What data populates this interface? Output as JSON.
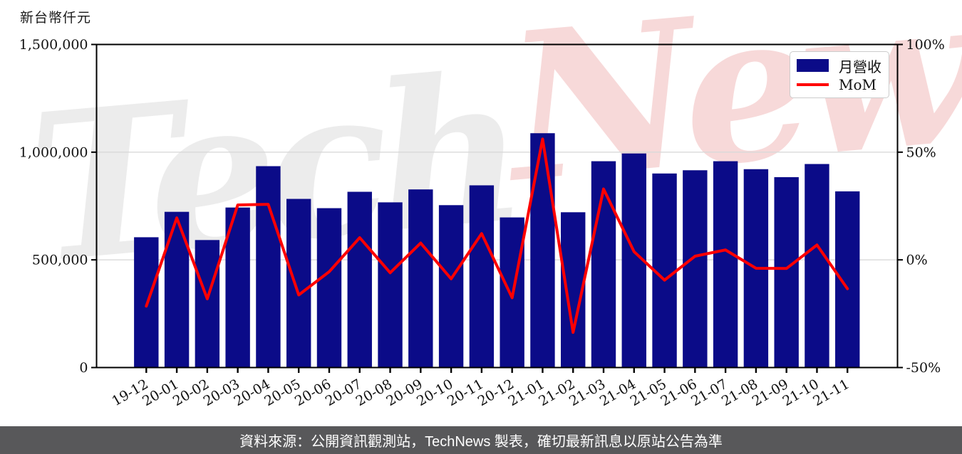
{
  "page": {
    "axis_unit_title": "新台幣仟元",
    "footer_text": "資料來源：公開資訊觀測站，TechNews 製表，確切最新訊息以原站公告為準"
  },
  "colors": {
    "bar": "#0b0b88",
    "line": "#ff0000",
    "grid": "#d9d9d9",
    "axis": "#000000",
    "tick_label": "#111111",
    "footer_bg": "#58585a",
    "footer_text": "#ffffff",
    "legend_border": "#cccccc",
    "watermark_gray": "#ececec",
    "watermark_pink": "#f7d9d9"
  },
  "watermark": {
    "part1": "Tech",
    "part2": "News"
  },
  "legend": {
    "position": "upper-right",
    "items": [
      {
        "label": "月營收",
        "type": "bar"
      },
      {
        "label": "MoM",
        "type": "line"
      }
    ]
  },
  "chart_data": {
    "type": "bar",
    "subtype": "bar+line dual axis",
    "categories": [
      "19-12",
      "20-01",
      "20-02",
      "20-03",
      "20-04",
      "20-05",
      "20-06",
      "20-07",
      "20-08",
      "20-09",
      "20-10",
      "20-11",
      "20-12",
      "21-01",
      "21-02",
      "21-03",
      "21-04",
      "21-05",
      "21-06",
      "21-07",
      "21-08",
      "21-09",
      "21-10",
      "21-11"
    ],
    "series": [
      {
        "name": "月營收",
        "type": "bar",
        "axis": "left",
        "unit": "新台幣仟元",
        "values": [
          605000,
          723000,
          592000,
          743000,
          935000,
          783000,
          740000,
          816000,
          767000,
          827000,
          754000,
          846000,
          697000,
          1088000,
          721000,
          958000,
          994000,
          901000,
          916000,
          958000,
          921000,
          884000,
          945000,
          818000
        ]
      },
      {
        "name": "MoM",
        "type": "line",
        "axis": "right",
        "unit": "%",
        "values": [
          -21.5,
          19.5,
          -18.1,
          25.5,
          25.8,
          -16.3,
          -5.5,
          10.3,
          -6.0,
          7.8,
          -8.8,
          12.2,
          -17.6,
          56.1,
          -33.7,
          32.9,
          3.8,
          -9.4,
          1.7,
          4.6,
          -3.9,
          -4.0,
          6.9,
          -13.4
        ]
      }
    ],
    "left_axis": {
      "title": "新台幣仟元",
      "range": [
        0,
        1500000
      ],
      "tick_values": [
        0,
        500000,
        1000000,
        1500000
      ],
      "tick_labels": [
        "0",
        "500,000",
        "1,000,000",
        "1,500,000"
      ]
    },
    "right_axis": {
      "range": [
        -50,
        100
      ],
      "tick_values": [
        -50,
        0,
        50,
        100
      ],
      "tick_labels": [
        "-50%",
        "0%",
        "50%",
        "100%"
      ]
    },
    "grid": {
      "horizontal_left_values": [
        500000,
        1000000
      ]
    },
    "x_tick_rotation_deg": -30,
    "legend_position": "upper right"
  }
}
